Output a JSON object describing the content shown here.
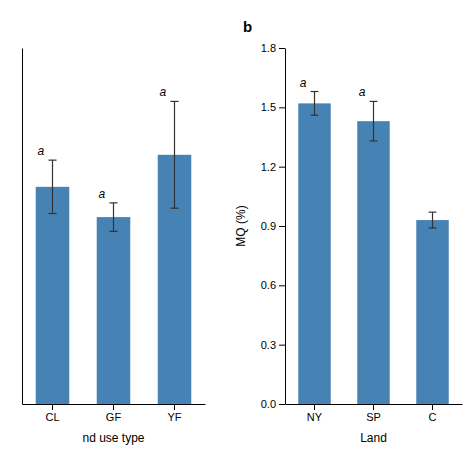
{
  "chart_data": [
    {
      "type": "bar",
      "categories": [
        "CL",
        "GF",
        "YF"
      ],
      "values": [
        1.22,
        1.05,
        1.4
      ],
      "errors": [
        0.15,
        0.08,
        0.3
      ],
      "annotations": [
        "a",
        "a",
        "a"
      ],
      "x_label": "nd use type",
      "ylim": [
        0,
        2.0
      ],
      "tick_labels": "x",
      "color": "#4682b4"
    },
    {
      "type": "bar",
      "title": "b",
      "categories": [
        "NY",
        "SP",
        "C"
      ],
      "values": [
        1.52,
        1.43,
        0.93
      ],
      "errors": [
        0.06,
        0.1,
        0.04
      ],
      "annotations": [
        "a",
        "a",
        null
      ],
      "x_label": "Land",
      "y_label": "MQ (%)",
      "ylim": [
        0.0,
        1.8
      ],
      "yticks": [
        {
          "value": 0.0,
          "label": "0.0"
        },
        0.3,
        0.6,
        0.9,
        1.2,
        1.5,
        1.8
      ],
      "color": "#4682b4"
    }
  ]
}
